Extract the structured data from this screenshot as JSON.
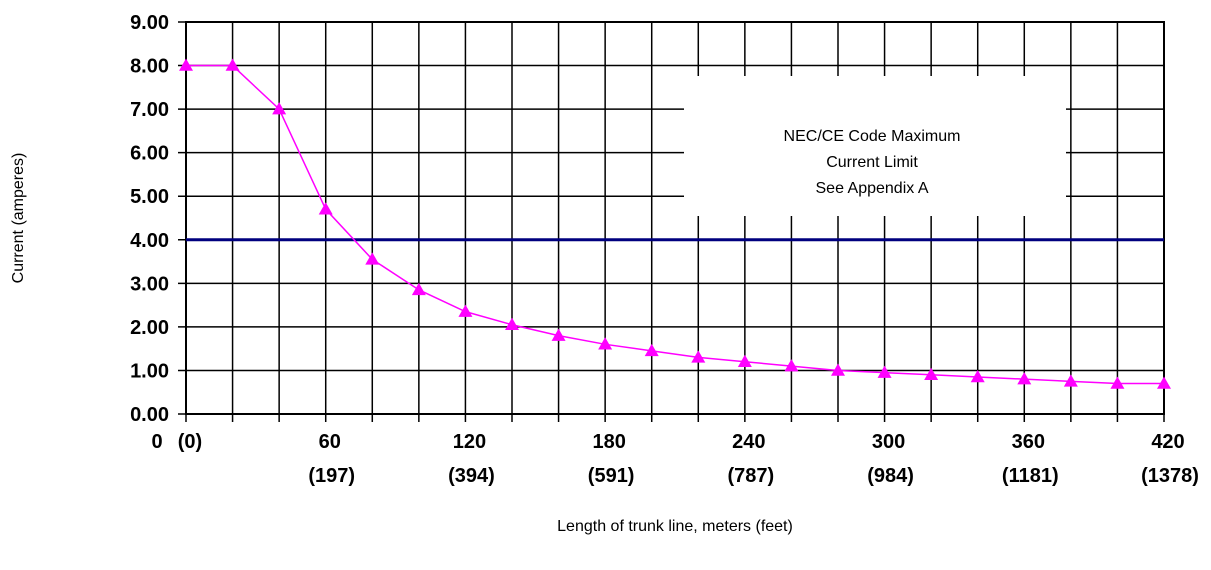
{
  "chart_data": {
    "type": "line",
    "title": "",
    "xlabel": "Length of trunk line, meters (feet)",
    "ylabel": "Current (amperes)",
    "xlim": [
      0,
      420
    ],
    "ylim": [
      0,
      9
    ],
    "grid": true,
    "legend": "none",
    "y_ticks": [
      "0.00",
      "1.00",
      "2.00",
      "3.00",
      "4.00",
      "5.00",
      "6.00",
      "7.00",
      "8.00",
      "9.00"
    ],
    "y_tick_values": [
      0,
      1,
      2,
      3,
      4,
      5,
      6,
      7,
      8,
      9
    ],
    "x_ticks": [
      {
        "value": 0,
        "meters": "0",
        "feet": "(0)"
      },
      {
        "value": 60,
        "meters": "60",
        "feet": "(197)"
      },
      {
        "value": 120,
        "meters": "120",
        "feet": "(394)"
      },
      {
        "value": 180,
        "meters": "180",
        "feet": "(591)"
      },
      {
        "value": 240,
        "meters": "240",
        "feet": "(787)"
      },
      {
        "value": 300,
        "meters": "300",
        "feet": "(984)"
      },
      {
        "value": 360,
        "meters": "360",
        "feet": "(1181)"
      },
      {
        "value": 420,
        "meters": "420",
        "feet": "(1378)"
      }
    ],
    "x_gridlines": [
      0,
      20,
      40,
      60,
      80,
      100,
      120,
      140,
      160,
      180,
      200,
      220,
      240,
      260,
      280,
      300,
      320,
      340,
      360,
      380,
      400,
      420
    ],
    "series": [
      {
        "color": "#ff00ff",
        "marker": "triangle",
        "x": [
          0,
          20,
          40,
          60,
          80,
          100,
          120,
          140,
          160,
          180,
          200,
          220,
          240,
          260,
          280,
          300,
          320,
          340,
          360,
          380,
          400,
          420
        ],
        "y": [
          8.0,
          8.0,
          7.0,
          4.7,
          3.55,
          2.85,
          2.35,
          2.05,
          1.8,
          1.6,
          1.45,
          1.3,
          1.2,
          1.1,
          1.0,
          0.95,
          0.9,
          0.85,
          0.8,
          0.75,
          0.7,
          0.7
        ]
      }
    ],
    "reference_line": {
      "y": 4.0,
      "color": "#00007f"
    },
    "annotation": {
      "lines": [
        "NEC/CE Code Maximum",
        "Current Limit",
        "See Appendix A"
      ]
    }
  }
}
